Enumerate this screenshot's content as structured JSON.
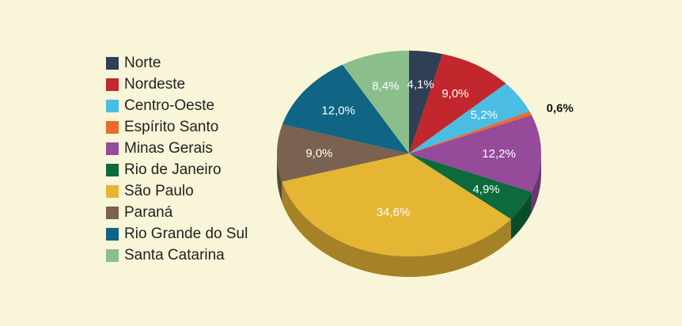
{
  "chart_data": {
    "type": "pie",
    "title": "",
    "legend_position": "left",
    "series": [
      {
        "name": "Norte",
        "value": 4.1,
        "label": "4,1%",
        "color": "#2f3f55"
      },
      {
        "name": "Nordeste",
        "value": 9.0,
        "label": "9,0%",
        "color": "#c1272d"
      },
      {
        "name": "Centro-Oeste",
        "value": 5.2,
        "label": "5,2%",
        "color": "#4bbde3"
      },
      {
        "name": "Espírito Santo",
        "value": 0.6,
        "label": "0,6%",
        "color": "#ec6a2c"
      },
      {
        "name": "Minas Gerais",
        "value": 12.2,
        "label": "12,2%",
        "color": "#954a9a"
      },
      {
        "name": "Rio de Janeiro",
        "value": 4.9,
        "label": "4,9%",
        "color": "#0c6a3c"
      },
      {
        "name": "São Paulo",
        "value": 34.6,
        "label": "34,6%",
        "color": "#e5b534"
      },
      {
        "name": "Paraná",
        "value": 9.0,
        "label": "9,0%",
        "color": "#7a6150"
      },
      {
        "name": "Rio Grande do Sul",
        "value": 12.0,
        "label": "12,0%",
        "color": "#0f6583"
      },
      {
        "name": "Santa Catarina",
        "value": 8.4,
        "label": "8,4%",
        "color": "#8abf8c"
      }
    ]
  }
}
